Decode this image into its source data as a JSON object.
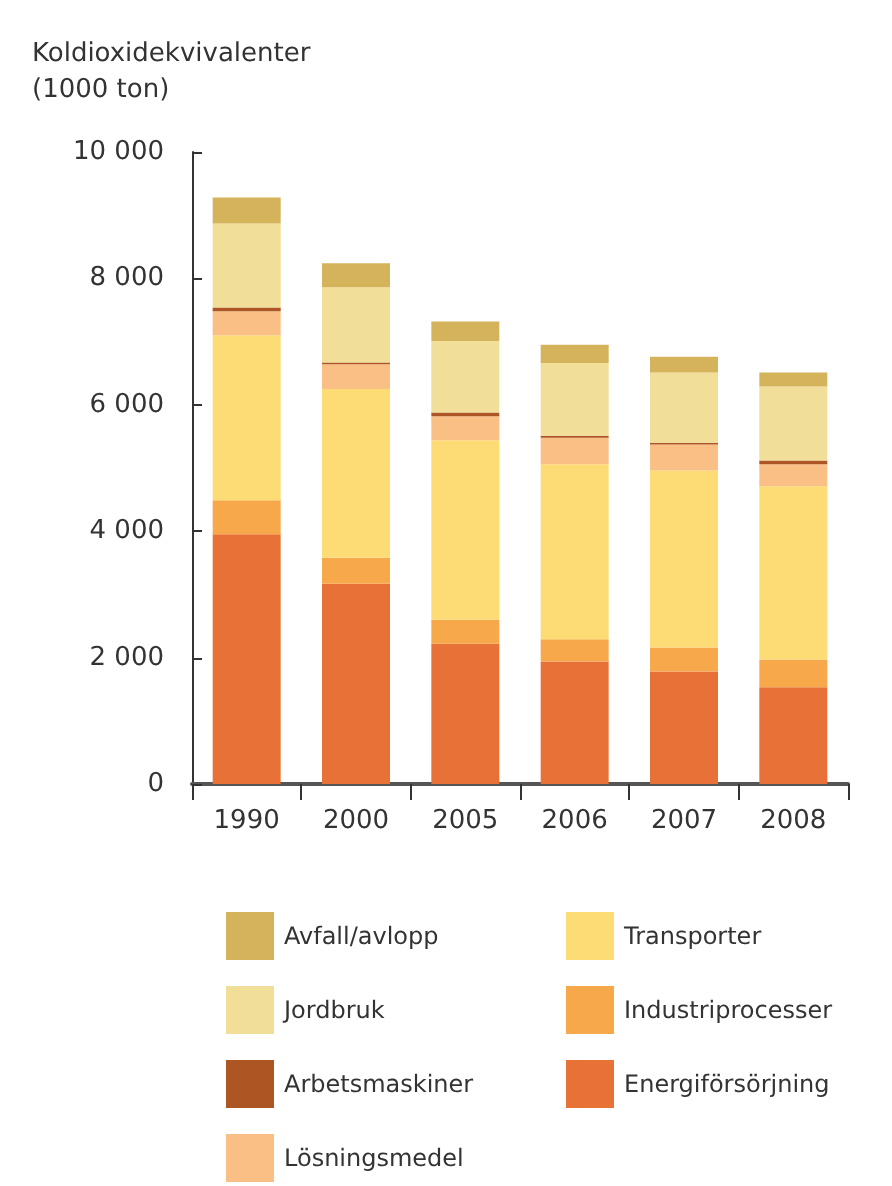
{
  "chart_data": {
    "type": "bar",
    "stacked": true,
    "ylabel": "Koldioxidekvivalenter\n(1000 ton)",
    "categories": [
      "1990",
      "2000",
      "2005",
      "2006",
      "2007",
      "2008"
    ],
    "series": [
      {
        "name": "Energiförsörjning",
        "color": "#e87137",
        "values": [
          3950,
          3170,
          2220,
          1940,
          1780,
          1530
        ]
      },
      {
        "name": "Industriprocesser",
        "color": "#f6a84a",
        "values": [
          540,
          410,
          380,
          350,
          380,
          440
        ]
      },
      {
        "name": "Transporter",
        "color": "#fddc76",
        "values": [
          2610,
          2670,
          2840,
          2770,
          2800,
          2740
        ]
      },
      {
        "name": "Lösningsmedel",
        "color": "#f9bf84",
        "values": [
          380,
          390,
          380,
          420,
          410,
          350
        ]
      },
      {
        "name": "Arbetsmaskiner",
        "color": "#ad5523",
        "values": [
          60,
          30,
          60,
          30,
          30,
          60
        ]
      },
      {
        "name": "Jordbruk",
        "color": "#f1de98",
        "values": [
          1330,
          1190,
          1130,
          1150,
          1110,
          1170
        ]
      },
      {
        "name": "Avfall/avlopp",
        "color": "#d4b35a",
        "values": [
          410,
          380,
          310,
          290,
          250,
          220
        ]
      }
    ],
    "ylim": [
      0,
      10000
    ],
    "yticks": [
      {
        "value": 0,
        "label": "0"
      },
      {
        "value": 2000,
        "label": "2 000"
      },
      {
        "value": 4000,
        "label": "4 000"
      },
      {
        "value": 6000,
        "label": "6 000"
      },
      {
        "value": 8000,
        "label": "8 000"
      },
      {
        "value": 10000,
        "label": "10 000"
      }
    ],
    "grid": false,
    "legend": "bottom"
  }
}
